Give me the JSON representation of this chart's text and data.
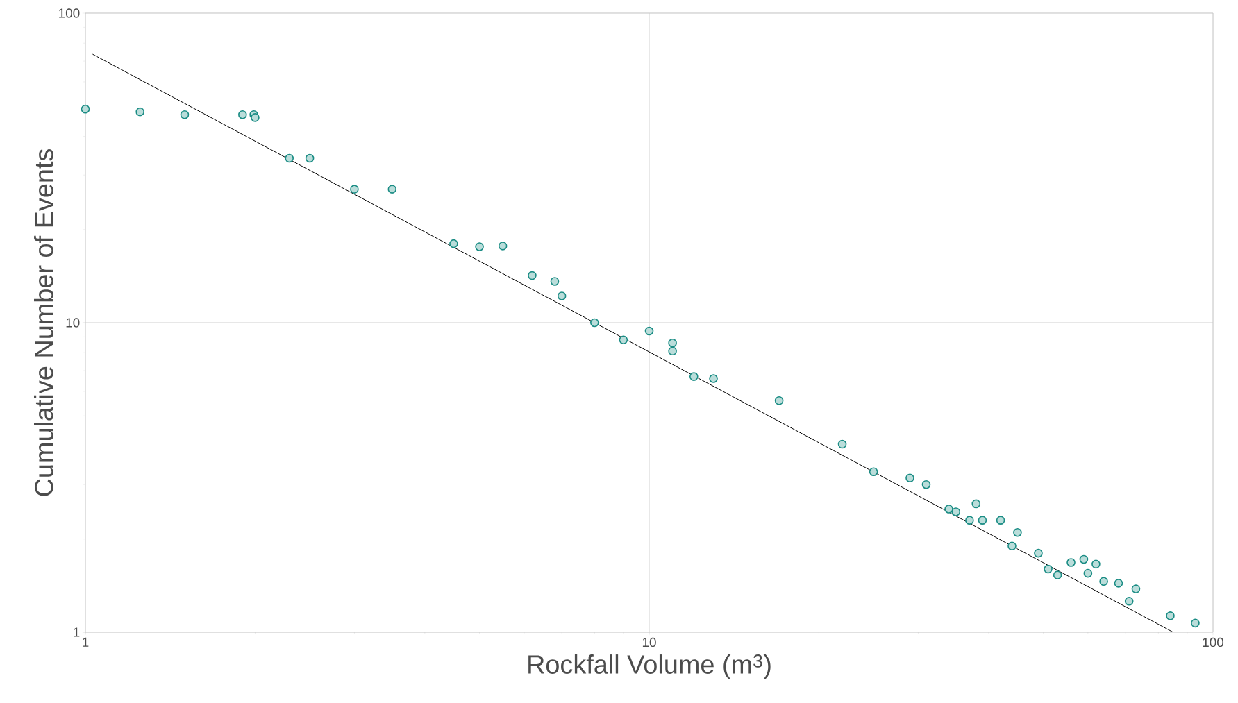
{
  "chart_data": {
    "type": "scatter",
    "xlabel": "Rockfall Volume (m$^{3}$)",
    "ylabel": "Cumulative Number of Events",
    "log": "xy",
    "grid": true,
    "marker": "circle",
    "xlim": [
      1,
      100
    ],
    "ylim": [
      1,
      100
    ],
    "xticks": [
      1,
      10,
      100
    ],
    "yticks": [
      1,
      10,
      100
    ],
    "series": [
      {
        "color": "#1a8c84",
        "x": [
          1,
          1.25,
          1.5,
          1.9,
          1.99,
          2,
          2.3,
          2.5,
          3,
          3.5,
          4.5,
          5,
          5.5,
          6.2,
          6.8,
          7,
          8,
          9,
          10,
          11,
          11,
          12,
          13,
          17,
          22,
          25,
          29,
          31,
          34,
          35,
          37,
          38,
          39,
          42,
          44,
          45,
          49,
          51,
          53,
          56,
          59,
          60,
          62,
          64,
          68,
          71,
          73,
          84,
          93
        ],
        "values": [
          49,
          48,
          47,
          47,
          47,
          46,
          34,
          34,
          27,
          27,
          18,
          17.6,
          17.7,
          14.2,
          13.6,
          12.2,
          10,
          8.8,
          9.4,
          8.6,
          8.1,
          6.7,
          6.6,
          5.6,
          4.05,
          3.3,
          3.15,
          3,
          2.5,
          2.45,
          2.3,
          2.6,
          2.3,
          2.3,
          1.9,
          2.1,
          1.8,
          1.6,
          1.53,
          1.68,
          1.72,
          1.55,
          1.66,
          1.46,
          1.44,
          1.26,
          1.38,
          1.13,
          1.07
        ]
      },
      {
        "type": "line",
        "color": "#000000",
        "marker": "none",
        "x": [
          1.03,
          85
        ],
        "values": [
          73.7,
          1
        ]
      }
    ]
  }
}
